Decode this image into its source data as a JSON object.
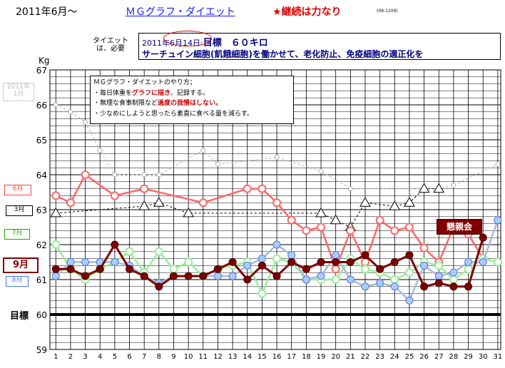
{
  "header": {
    "title": "2011年6月～",
    "link": "ＭＧグラフ・ダイエット",
    "motto": "★継続は力なり",
    "code": "(09-1109)"
  },
  "tag_label": "タイエット\nは、必要",
  "goal_box": {
    "line1_prefix": "2011年",
    "line1_date": "6月14日",
    "line1_sep": ":",
    "line1_goal": "目標　６０キロ",
    "line2": "サーチュイン細胞(飢餓細胞)を働かせて、老化防止、免疫細胞の適正化を"
  },
  "howto": {
    "title": "ＭＧグラフ・ダイエットのやり方；",
    "rule1_pre": "・毎日体重を",
    "rule1_hl": "グラフに描き",
    "rule1_post": "、記録する。",
    "rule2_pre": "・無理な食事制限など",
    "rule2_hl": "過度の我慢はしない。",
    "rule3": "・少なめにしようと思ったら素直に食べる量を減らす。"
  },
  "tags": {
    "jan": "2011年\n1月",
    "jun": "6月",
    "mar": "3月",
    "jul": "7月",
    "sep": "9月",
    "aug": "8月",
    "goal": "目標",
    "party": "懇親会"
  },
  "chart_data": {
    "type": "line",
    "ylabel": "Kg",
    "ylim": [
      59,
      67
    ],
    "yticks": [
      59,
      60,
      61,
      62,
      63,
      64,
      65,
      66,
      67
    ],
    "x": [
      1,
      2,
      3,
      4,
      5,
      6,
      7,
      8,
      9,
      10,
      11,
      12,
      13,
      14,
      15,
      16,
      17,
      18,
      19,
      20,
      21,
      22,
      23,
      24,
      25,
      26,
      27,
      28,
      29,
      30,
      31
    ],
    "goal_line": 60,
    "grid": true,
    "series": [
      {
        "name": "2011年1月",
        "color": "#b0b0b0",
        "dash": true,
        "marker": "circle-small",
        "points": [
          [
            1,
            66.0
          ],
          [
            2,
            65.8
          ],
          [
            3,
            65.5
          ],
          [
            4,
            64.7
          ],
          [
            5,
            64.0
          ],
          [
            7,
            64.0
          ],
          [
            8,
            64.0
          ],
          [
            11,
            64.7
          ],
          [
            12,
            64.3
          ],
          [
            16,
            64.5
          ],
          [
            19,
            64.1
          ],
          [
            21,
            63.6
          ],
          [
            27,
            63.6
          ],
          [
            28,
            63.7
          ],
          [
            31,
            64.3
          ]
        ]
      },
      {
        "name": "3月",
        "color": "#000000",
        "dash": true,
        "marker": "triangle",
        "points": [
          [
            1,
            62.9
          ],
          [
            7,
            63.1
          ],
          [
            8,
            63.2
          ],
          [
            10,
            62.9
          ],
          [
            19,
            62.9
          ],
          [
            20,
            62.7
          ],
          [
            21,
            62.5
          ],
          [
            22,
            63.2
          ],
          [
            24,
            63.1
          ],
          [
            25,
            63.2
          ],
          [
            26,
            63.6
          ],
          [
            27,
            63.6
          ]
        ]
      },
      {
        "name": "6月",
        "color": "#ff6666",
        "dash": false,
        "marker": "circle",
        "points": [
          [
            1,
            63.4
          ],
          [
            2,
            63.2
          ],
          [
            3,
            64.0
          ],
          [
            5,
            63.4
          ],
          [
            7,
            63.6
          ],
          [
            11,
            63.2
          ],
          [
            14,
            63.6
          ],
          [
            15,
            63.6
          ],
          [
            16,
            63.2
          ],
          [
            17,
            62.7
          ],
          [
            18,
            62.4
          ],
          [
            19,
            62.5
          ],
          [
            20,
            61.3
          ],
          [
            21,
            62.4
          ],
          [
            22,
            61.5
          ],
          [
            23,
            62.7
          ],
          [
            24,
            62.4
          ],
          [
            25,
            62.5
          ],
          [
            26,
            61.9
          ],
          [
            27,
            61.5
          ],
          [
            28,
            62.5
          ],
          [
            29,
            62.3
          ],
          [
            30,
            61.6
          ]
        ]
      },
      {
        "name": "7月",
        "color": "#99ee99",
        "dash": false,
        "marker": "circle",
        "points": [
          [
            1,
            62.0
          ],
          [
            2,
            61.3
          ],
          [
            3,
            61.0
          ],
          [
            4,
            61.3
          ],
          [
            5,
            61.5
          ],
          [
            6,
            61.8
          ],
          [
            7,
            61.2
          ],
          [
            8,
            61.8
          ],
          [
            9,
            61.3
          ],
          [
            10,
            61.5
          ],
          [
            11,
            61.1
          ],
          [
            12,
            61.3
          ],
          [
            13,
            61.4
          ],
          [
            14,
            61.5
          ],
          [
            15,
            60.6
          ],
          [
            16,
            61.6
          ],
          [
            17,
            61.5
          ],
          [
            18,
            61.0
          ],
          [
            19,
            61.0
          ],
          [
            20,
            61.0
          ],
          [
            21,
            61.6
          ],
          [
            22,
            61.3
          ],
          [
            23,
            61.2
          ],
          [
            24,
            61.0
          ],
          [
            25,
            61.2
          ],
          [
            26,
            61.5
          ],
          [
            27,
            61.4
          ],
          [
            28,
            61.0
          ],
          [
            29,
            61.3
          ],
          [
            30,
            61.6
          ],
          [
            31,
            61.5
          ]
        ]
      },
      {
        "name": "8月",
        "color": "#aab8dd",
        "dash": false,
        "marker": "circle-blue",
        "points": [
          [
            1,
            61.1
          ],
          [
            2,
            61.5
          ],
          [
            3,
            61.5
          ],
          [
            4,
            61.5
          ],
          [
            5,
            61.5
          ],
          [
            6,
            61.4
          ],
          [
            7,
            61.1
          ],
          [
            8,
            60.9
          ],
          [
            9,
            61.1
          ],
          [
            10,
            61.1
          ],
          [
            11,
            61.1
          ],
          [
            12,
            61.1
          ],
          [
            13,
            61.1
          ],
          [
            14,
            61.4
          ],
          [
            15,
            61.6
          ],
          [
            16,
            62.0
          ],
          [
            17,
            61.7
          ],
          [
            18,
            61.0
          ],
          [
            19,
            61.1
          ],
          [
            20,
            61.7
          ],
          [
            21,
            61.0
          ],
          [
            22,
            60.8
          ],
          [
            23,
            60.9
          ],
          [
            24,
            60.8
          ],
          [
            25,
            60.4
          ],
          [
            26,
            61.4
          ],
          [
            27,
            61.1
          ],
          [
            28,
            61.2
          ],
          [
            29,
            61.5
          ],
          [
            30,
            61.5
          ],
          [
            31,
            62.7
          ]
        ]
      },
      {
        "name": "9月",
        "color": "#800000",
        "dash": false,
        "marker": "circle-dark",
        "points": [
          [
            1,
            61.3
          ],
          [
            2,
            61.3
          ],
          [
            3,
            61.1
          ],
          [
            4,
            61.3
          ],
          [
            5,
            62.0
          ],
          [
            6,
            61.3
          ],
          [
            7,
            61.1
          ],
          [
            8,
            60.8
          ],
          [
            9,
            61.1
          ],
          [
            10,
            61.1
          ],
          [
            11,
            61.1
          ],
          [
            12,
            61.3
          ],
          [
            13,
            61.5
          ],
          [
            14,
            61.0
          ],
          [
            15,
            61.4
          ],
          [
            16,
            61.1
          ],
          [
            17,
            61.5
          ],
          [
            18,
            61.3
          ],
          [
            19,
            61.5
          ],
          [
            20,
            61.5
          ],
          [
            21,
            61.5
          ],
          [
            22,
            61.7
          ],
          [
            23,
            61.3
          ],
          [
            24,
            61.5
          ],
          [
            25,
            61.7
          ],
          [
            26,
            60.8
          ],
          [
            27,
            60.9
          ],
          [
            28,
            60.8
          ],
          [
            29,
            60.8
          ],
          [
            30,
            62.2
          ]
        ]
      }
    ]
  }
}
